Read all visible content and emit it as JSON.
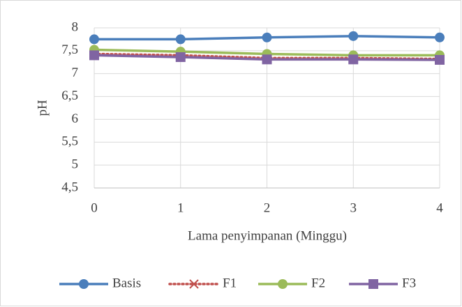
{
  "chart_data": {
    "type": "line",
    "x_label": "Lama penyimpanan (Minggu)",
    "y_label": "pH",
    "x": [
      0,
      1,
      2,
      3,
      4
    ],
    "xlim": [
      0,
      4
    ],
    "xticks": [
      0,
      1,
      2,
      3,
      4
    ],
    "ylim": [
      4.5,
      8
    ],
    "yticks": [
      {
        "value": 4.5,
        "label": "4,5"
      },
      5,
      {
        "value": 5.5,
        "label": "5,5"
      },
      6,
      {
        "value": 6.5,
        "label": "6,5"
      },
      7,
      {
        "value": 7.5,
        "label": "7,5"
      },
      8
    ],
    "grid": true,
    "legend": "bottom",
    "series": [
      {
        "name": "Basis",
        "color": "#4a7ebb",
        "marker": "circle",
        "dash": "solid",
        "values": [
          7.75,
          7.75,
          7.79,
          7.82,
          7.79
        ]
      },
      {
        "name": "F1",
        "color": "#c0504d",
        "marker": "x",
        "dash": "dotted",
        "values": [
          7.43,
          7.4,
          7.34,
          7.34,
          7.32
        ]
      },
      {
        "name": "F2",
        "color": "#9bbb59",
        "marker": "circle",
        "dash": "solid",
        "values": [
          7.52,
          7.48,
          7.43,
          7.4,
          7.4
        ]
      },
      {
        "name": "F3",
        "color": "#8064a2",
        "marker": "square",
        "dash": "solid",
        "values": [
          7.4,
          7.36,
          7.31,
          7.31,
          7.3
        ]
      }
    ]
  }
}
